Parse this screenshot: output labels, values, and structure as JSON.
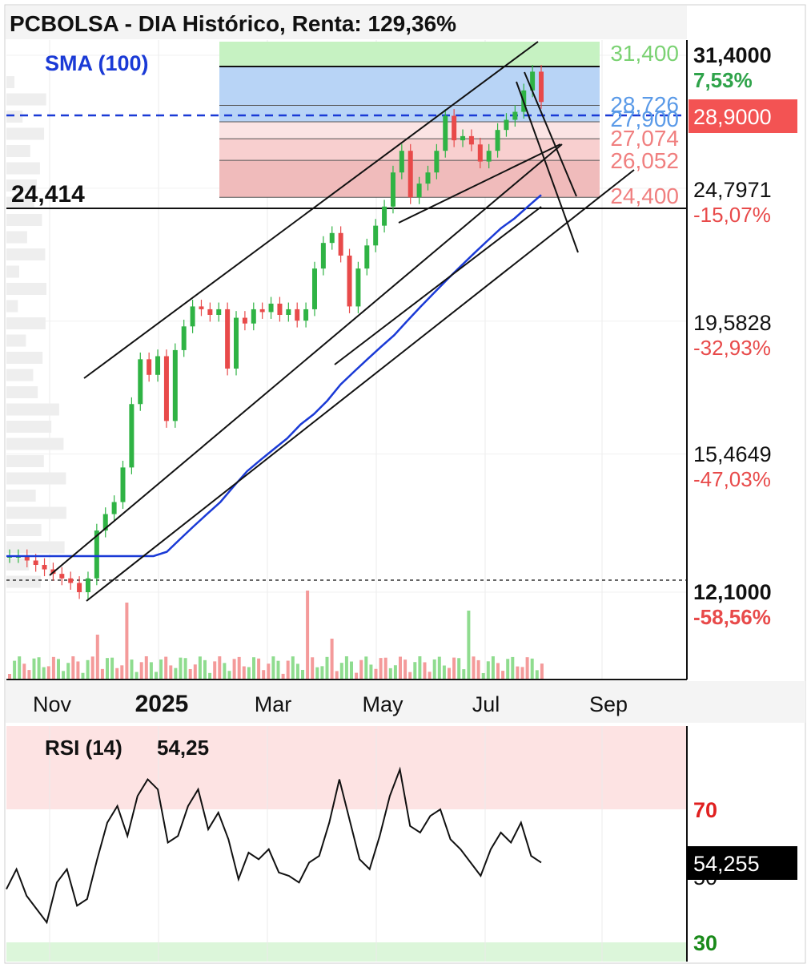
{
  "header": {
    "title": "PCBOLSA - DIA Histórico, Renta: 129,36%",
    "indicator_label": "SMA (100)"
  },
  "colors": {
    "up": "#2fb344",
    "down": "#e84a4a",
    "sma": "#1a3ad6",
    "fib_blue": "#b8d4f6",
    "fib_green": "#c6f2c2",
    "fib_red": "#f2b5b5",
    "price_tag": "#f35353",
    "rsi_overbought_zone": "#fde3e3",
    "rsi_oversold_zone": "#dcf6da"
  },
  "levels": {
    "support_label": "24,414",
    "reference_dotted": "12,1000"
  },
  "fib_levels": [
    {
      "value": "31,400",
      "color": "#7bd273"
    },
    {
      "value": "28,726",
      "color": "#5a9ae8"
    },
    {
      "value": "27,900",
      "color": "#5a9ae8"
    },
    {
      "value": "27,074",
      "color": "#f07f7f"
    },
    {
      "value": "26,052",
      "color": "#f07f7f"
    },
    {
      "value": "24,400",
      "color": "#f07f7f"
    }
  ],
  "price_axis": [
    {
      "price": "31,4000",
      "pct": "7,53%",
      "pct_color": "#2fa34a"
    },
    {
      "price": "24,7971",
      "pct": "-15,07%",
      "pct_color": "#e84a4a"
    },
    {
      "price": "19,5828",
      "pct": "-32,93%",
      "pct_color": "#e84a4a"
    },
    {
      "price": "15,4649",
      "pct": "-47,03%",
      "pct_color": "#e84a4a"
    },
    {
      "price": "12,1000",
      "pct": "-58,56%",
      "pct_color": "#e84a4a"
    }
  ],
  "current_price_tag": "28,9000",
  "x_axis": {
    "labels": [
      "Nov",
      "2025",
      "Mar",
      "May",
      "Jul",
      "Sep"
    ]
  },
  "rsi": {
    "title": "RSI (14)",
    "value_text": "54,25",
    "tag": "54,255",
    "level_high": "70",
    "level_low": "30",
    "level_mid_partial": "50"
  },
  "chart_data": {
    "type": "candlestick",
    "title": "PCBOLSA - DIA Histórico, Renta: 129,36%",
    "y_scale": "log",
    "y_ticks": [
      31.4,
      24.7971,
      19.5828,
      15.4649,
      12.1
    ],
    "x_ticks": [
      "Nov",
      "2025",
      "Mar",
      "May",
      "Jul",
      "Sep"
    ],
    "close_series": [
      12.9,
      12.9,
      12.8,
      12.7,
      12.6,
      12.5,
      12.4,
      12.3,
      12.1,
      12.4,
      13.5,
      13.9,
      14.2,
      15.1,
      16.9,
      18.3,
      17.8,
      18.4,
      16.4,
      18.6,
      19.4,
      20.1,
      20.0,
      19.8,
      20.0,
      18.0,
      19.7,
      19.5,
      20.0,
      19.9,
      20.2,
      19.8,
      20.0,
      19.6,
      20.0,
      21.5,
      22.5,
      22.9,
      22.0,
      20.1,
      21.5,
      22.4,
      23.2,
      24.0,
      25.5,
      26.5,
      24.4,
      25.0,
      25.5,
      26.5,
      28.2,
      27.0,
      27.2,
      26.8,
      26.0,
      26.5,
      27.5,
      28.0,
      28.4,
      29.5,
      30.5,
      28.9
    ],
    "sma_100": [
      12.9,
      12.9,
      12.9,
      12.9,
      12.9,
      12.9,
      12.9,
      12.9,
      12.9,
      12.9,
      12.9,
      12.9,
      13.0,
      13.3,
      13.6,
      13.9,
      14.2,
      14.6,
      15.0,
      15.3,
      15.6,
      15.9,
      16.3,
      16.6,
      17.0,
      17.5,
      17.9,
      18.3,
      18.7,
      19.1,
      19.6,
      20.1,
      20.6,
      21.1,
      21.6,
      22.1,
      22.6,
      23.1,
      23.5,
      24.0,
      24.5
    ],
    "volume_spikes": {
      "2025": "high",
      "Apr": "high",
      "Jul": "high"
    },
    "fib_retracement": {
      "high": 31.4,
      "levels": [
        31.4,
        28.726,
        27.9,
        27.074,
        26.052,
        24.4
      ]
    },
    "support_line": 24.414,
    "last_price": 28.9,
    "rsi_14": {
      "last": 54.25,
      "upper": 70,
      "lower": 30,
      "values": [
        46,
        52,
        44,
        40,
        36,
        48,
        52,
        41,
        43,
        55,
        66,
        71,
        62,
        74,
        79,
        76,
        60,
        62,
        71,
        76,
        64,
        69,
        61,
        49,
        57,
        55,
        58,
        51,
        50,
        48,
        54,
        56,
        66,
        79,
        67,
        55,
        52,
        62,
        74,
        82,
        65,
        63,
        68,
        70,
        61,
        58,
        54,
        50,
        58,
        63,
        60,
        66,
        56,
        54
      ]
    }
  }
}
